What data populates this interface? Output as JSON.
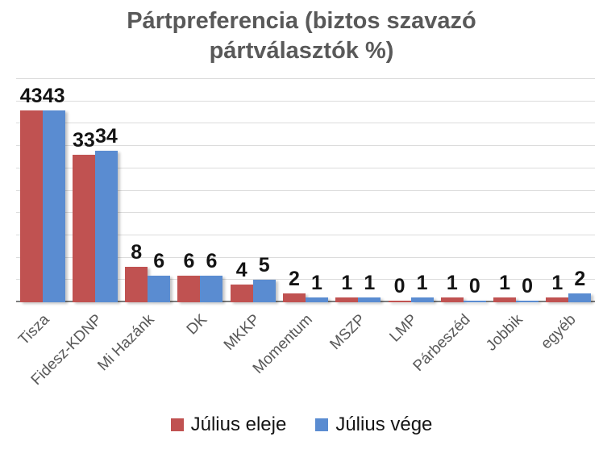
{
  "title": "Pártpreferencia (biztos szavazó pártválasztók %)",
  "chart_data": {
    "type": "bar",
    "title": "Pártpreferencia (biztos szavazó pártválasztók %)",
    "categories": [
      "Tisza",
      "Fidesz-KDNP",
      "Mi Hazánk",
      "DK",
      "MKKP",
      "Momentum",
      "MSZP",
      "LMP",
      "Párbeszéd",
      "Jobbik",
      "egyéb"
    ],
    "series": [
      {
        "name": "Július eleje",
        "color": "#c05251",
        "values": [
          43,
          33,
          8,
          6,
          4,
          2,
          1,
          0,
          1,
          1,
          1
        ]
      },
      {
        "name": "Július vége",
        "color": "#5a8cd1",
        "values": [
          43,
          34,
          6,
          6,
          5,
          1,
          1,
          1,
          0,
          0,
          2
        ]
      }
    ],
    "xlabel": "",
    "ylabel": "",
    "ylim": [
      0,
      50
    ],
    "grid_step": 5,
    "grid": "horizontal",
    "value_labels": true,
    "legend_position": "bottom"
  },
  "colors": {
    "title": "#595959",
    "axis_label": "#595959",
    "gridline": "#dcdcdc",
    "axis_line": "#7d7d7d",
    "value_label": "#141414",
    "background": "#ffffff"
  }
}
